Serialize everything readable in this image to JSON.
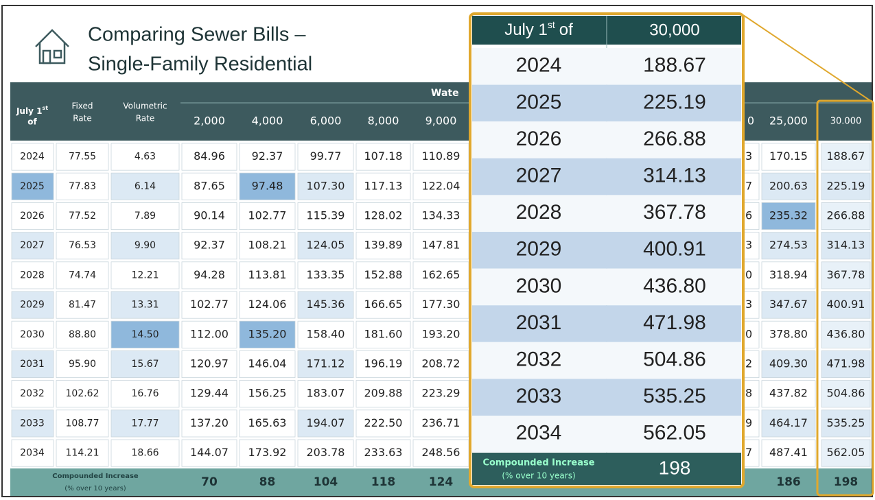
{
  "title": [
    "Comparing Sewer Bills –",
    "Single-Family Residential"
  ],
  "table": {
    "year_header": {
      "text": "July 1",
      "sup": "st",
      "rest": "of"
    },
    "group_header": "Wate",
    "increase_label": [
      "Compounded Increase",
      "(% over 10 years)"
    ],
    "years": [
      "2024",
      "2025",
      "2026",
      "2027",
      "2028",
      "2029",
      "2030",
      "2031",
      "2032",
      "2033",
      "2034"
    ],
    "columns": [
      {
        "header": [
          "Fixed",
          "Rate"
        ],
        "values": [
          "77.55",
          "77.83",
          "77.52",
          "76.53",
          "74.74",
          "81.47",
          "88.80",
          "95.90",
          "102.62",
          "108.77",
          "114.21"
        ]
      },
      {
        "header": [
          "Volumetric",
          "Rate"
        ],
        "values": [
          "4.63",
          "6.14",
          "7.89",
          "9.90",
          "12.21",
          "13.31",
          "14.50",
          "15.67",
          "16.76",
          "17.77",
          "18.66"
        ]
      },
      {
        "header": [
          "2,000"
        ],
        "values": [
          "84.96",
          "87.65",
          "90.14",
          "92.37",
          "94.28",
          "102.77",
          "112.00",
          "120.97",
          "129.44",
          "137.20",
          "144.07"
        ],
        "increase": "70"
      },
      {
        "header": [
          "4,000"
        ],
        "values": [
          "92.37",
          "97.48",
          "102.77",
          "108.21",
          "113.81",
          "124.06",
          "135.20",
          "146.04",
          "156.25",
          "165.63",
          "173.92"
        ],
        "increase": "88"
      },
      {
        "header": [
          "6,000"
        ],
        "values": [
          "99.77",
          "107.30",
          "115.39",
          "124.05",
          "133.35",
          "145.36",
          "158.40",
          "171.12",
          "183.07",
          "194.07",
          "203.78"
        ],
        "increase": "104"
      },
      {
        "header": [
          "8,000"
        ],
        "values": [
          "107.18",
          "117.13",
          "128.02",
          "139.89",
          "152.88",
          "166.65",
          "181.60",
          "196.19",
          "209.88",
          "222.50",
          "233.63"
        ],
        "increase": "118"
      },
      {
        "header": [
          "9,000"
        ],
        "values": [
          "110.89",
          "122.04",
          "134.33",
          "147.81",
          "162.65",
          "177.30",
          "193.20",
          "208.72",
          "223.29",
          "236.71",
          "248.56"
        ],
        "increase": "124"
      },
      {
        "header": [
          "0"
        ],
        "values": [
          "3",
          "7",
          "6",
          "3",
          "0",
          "3",
          "0",
          "2",
          "8",
          "9",
          "7"
        ]
      },
      {
        "header": [
          "25,000"
        ],
        "values": [
          "170.15",
          "200.63",
          "235.32",
          "274.53",
          "318.94",
          "347.67",
          "378.80",
          "409.30",
          "437.82",
          "464.17",
          "487.41"
        ],
        "increase": "186"
      },
      {
        "header": [
          "30.000"
        ],
        "values": [
          "188.67",
          "225.19",
          "266.88",
          "314.13",
          "367.78",
          "400.91",
          "436.80",
          "471.98",
          "504.86",
          "535.25",
          "562.05"
        ],
        "increase": "198"
      }
    ]
  },
  "callout": {
    "value_header": "30,000"
  }
}
